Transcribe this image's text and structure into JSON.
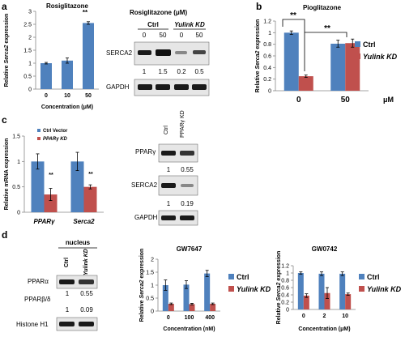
{
  "panel_letters": {
    "a": "a",
    "b": "b",
    "c": "c",
    "d": "d"
  },
  "colors": {
    "blue": "#4f81bd",
    "red": "#c0504d",
    "gel_bg": "#e6e6e6",
    "band": "#1a1a1a"
  },
  "chart_data": [
    {
      "id": "a-chart",
      "type": "bar",
      "title": "Rosiglitazone",
      "xlabel": "Concentration (μM)",
      "ylabel": "Relative Serca2 expression",
      "categories": [
        "0",
        "10",
        "50"
      ],
      "yticks": [
        "0",
        "0.5",
        "1",
        "1.5",
        "2",
        "2.5",
        "3"
      ],
      "ylim": [
        0,
        3
      ],
      "series": [
        {
          "values": [
            1.0,
            1.1,
            2.55
          ],
          "errors": [
            0.03,
            0.1,
            0.05
          ],
          "color": "#4f81bd"
        }
      ],
      "annotations": [
        "**"
      ]
    },
    {
      "id": "b-chart",
      "type": "bar",
      "title": "Pioglitazone",
      "xlabel": "",
      "ylabel": "Relative Serca2 expression",
      "categories": [
        "0",
        "50"
      ],
      "category_unit": "μM",
      "yticks": [
        "0",
        "0.2",
        "0.4",
        "0.6",
        "0.8",
        "1",
        "1.2"
      ],
      "ylim": [
        0,
        1.2
      ],
      "series": [
        {
          "name": "Ctrl",
          "values": [
            1.0,
            0.81
          ],
          "errors": [
            0.03,
            0.06
          ],
          "color": "#4f81bd"
        },
        {
          "name": "Yulink KD",
          "values": [
            0.25,
            0.82
          ],
          "errors": [
            0.02,
            0.07
          ],
          "color": "#c0504d"
        }
      ],
      "annotations": [
        "**",
        "**"
      ]
    },
    {
      "id": "c-chart",
      "type": "bar",
      "title": "",
      "xlabel": "",
      "ylabel": "Relative mRNA expression",
      "categories": [
        "PPARγ",
        "Serca2"
      ],
      "yticks": [
        "0",
        "0.5",
        "1",
        "1.5"
      ],
      "ylim": [
        0,
        1.5
      ],
      "series": [
        {
          "name": "Ctrl Vector",
          "values": [
            1.0,
            1.0
          ],
          "errors": [
            0.15,
            0.18
          ],
          "color": "#4f81bd"
        },
        {
          "name": "PPARγ KD",
          "values": [
            0.35,
            0.5
          ],
          "errors": [
            0.12,
            0.04
          ],
          "color": "#c0504d"
        }
      ],
      "annotations": [
        "**",
        "**"
      ]
    },
    {
      "id": "d1-chart",
      "type": "bar",
      "title": "GW7647",
      "xlabel": "Concentration (nM)",
      "ylabel": "Relative Serca2 expression",
      "categories": [
        "0",
        "100",
        "400"
      ],
      "yticks": [
        "0",
        "0.5",
        "1",
        "1.5",
        "2"
      ],
      "ylim": [
        0,
        2
      ],
      "series": [
        {
          "name": "Ctrl",
          "values": [
            1.0,
            1.02,
            1.45
          ],
          "errors": [
            0.2,
            0.15,
            0.12
          ],
          "color": "#4f81bd"
        },
        {
          "name": "Yulink KD",
          "values": [
            0.28,
            0.27,
            0.28
          ],
          "errors": [
            0.03,
            0.03,
            0.03
          ],
          "color": "#c0504d"
        }
      ]
    },
    {
      "id": "d2-chart",
      "type": "bar",
      "title": "GW0742",
      "xlabel": "Concentration (μM)",
      "ylabel": "Relative Serca2 expression",
      "categories": [
        "0",
        "2",
        "10"
      ],
      "yticks": [
        "0",
        "0.2",
        "0.4",
        "0.6",
        "0.8",
        "1",
        "1.2"
      ],
      "ylim": [
        0,
        1.2
      ],
      "series": [
        {
          "name": "Ctrl",
          "values": [
            1.0,
            0.98,
            0.98
          ],
          "errors": [
            0.03,
            0.05,
            0.05
          ],
          "color": "#4f81bd"
        },
        {
          "name": "Yulink KD",
          "values": [
            0.38,
            0.45,
            0.42
          ],
          "errors": [
            0.05,
            0.15,
            0.03
          ],
          "color": "#c0504d"
        }
      ]
    }
  ],
  "blots": {
    "a": {
      "title": "Rosiglitazone (μM)",
      "group_ctrl": "Ctrl",
      "group_kd": "Yulink KD",
      "lanes": [
        "0",
        "50",
        "0",
        "50"
      ],
      "rows": [
        {
          "label": "SERCA2",
          "values": [
            "1",
            "1.5",
            "0.2",
            "0.5"
          ]
        },
        {
          "label": "GAPDH",
          "values": []
        }
      ]
    },
    "c": {
      "lanes": [
        "Ctrl",
        "PPARγ KD"
      ],
      "rows": [
        {
          "label": "PPARγ",
          "values": [
            "1",
            "0.55"
          ]
        },
        {
          "label": "SERCA2",
          "values": [
            "1",
            "0.19"
          ]
        },
        {
          "label": "GAPDH",
          "values": []
        }
      ]
    },
    "d": {
      "title": "nucleus",
      "lanes": [
        "Ctrl",
        "Yulink KD"
      ],
      "rows": [
        {
          "label": "PPARα",
          "values": [
            "1",
            "0.55"
          ]
        },
        {
          "label": "PPARβ/δ",
          "values": [
            "1",
            "0.09"
          ]
        },
        {
          "label": "Histone H1",
          "values": []
        }
      ]
    }
  }
}
